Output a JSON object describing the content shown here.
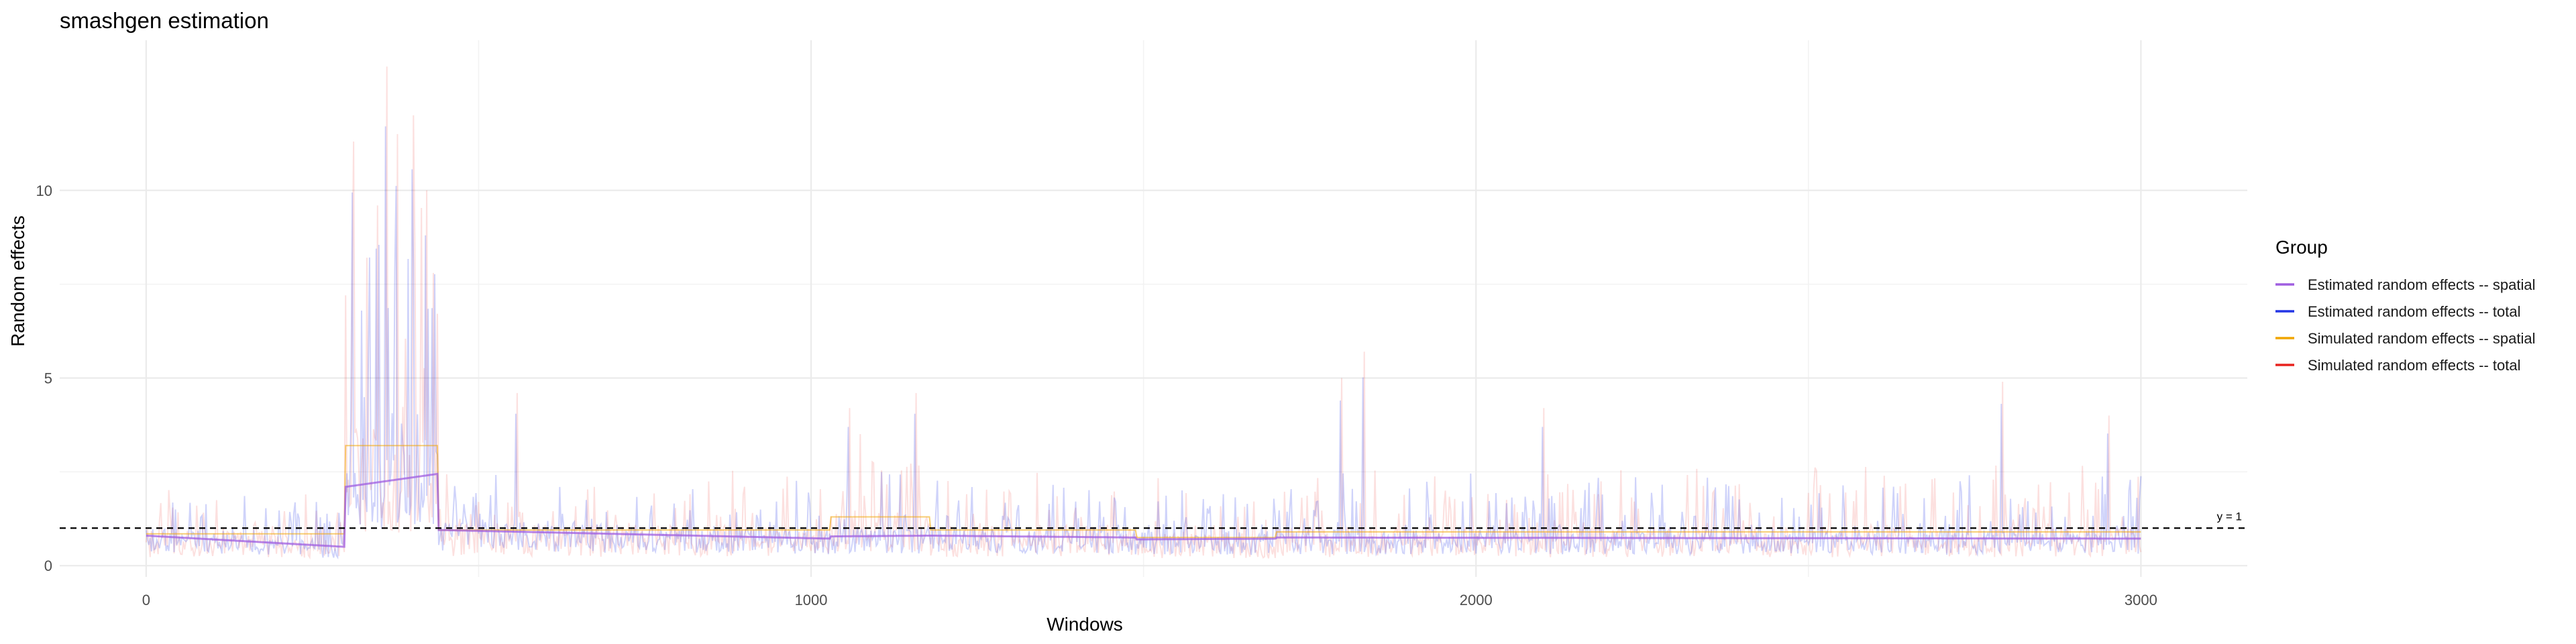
{
  "chart_data": {
    "type": "line",
    "title": "smashgen estimation",
    "xlabel": "Windows",
    "ylabel": "Random effects",
    "xlim": [
      -130,
      3160
    ],
    "ylim": [
      -0.3,
      14.0
    ],
    "x_ticks": [
      0,
      1000,
      2000,
      3000
    ],
    "y_ticks": [
      0,
      5,
      10
    ],
    "grid": true,
    "n_windows": 3000,
    "reference_line": {
      "y": 1,
      "label": "y = 1",
      "style": "dashed",
      "color": "#000000"
    },
    "legend": {
      "title": "Group",
      "position": "right",
      "entries": [
        {
          "label": "Estimated random effects -- spatial",
          "color": "#a05ee0"
        },
        {
          "label": "Estimated random effects -- total",
          "color": "#2436e6"
        },
        {
          "label": "Simulated random effects -- spatial",
          "color": "#f0a500"
        },
        {
          "label": "Simulated random effects -- total",
          "color": "#e8231f"
        }
      ]
    },
    "segments": [
      {
        "from": 0,
        "to": 300,
        "sim_spatial": 0.85,
        "est_spatial_start": 0.8,
        "est_spatial_end": 0.5,
        "noise_amp": 1.5
      },
      {
        "from": 300,
        "to": 440,
        "sim_spatial": 3.2,
        "est_spatial_start": 2.1,
        "est_spatial_end": 2.45,
        "noise_amp": 7.5
      },
      {
        "from": 440,
        "to": 1030,
        "sim_spatial": 0.95,
        "est_spatial_start": 0.95,
        "est_spatial_end": 0.72,
        "noise_amp": 1.6
      },
      {
        "from": 1030,
        "to": 1180,
        "sim_spatial": 1.3,
        "est_spatial_start": 0.78,
        "est_spatial_end": 0.8,
        "noise_amp": 2.2
      },
      {
        "from": 1180,
        "to": 1490,
        "sim_spatial": 0.95,
        "est_spatial_start": 0.8,
        "est_spatial_end": 0.75,
        "noise_amp": 1.6
      },
      {
        "from": 1490,
        "to": 1700,
        "sim_spatial": 0.75,
        "est_spatial_start": 0.7,
        "est_spatial_end": 0.72,
        "noise_amp": 1.5
      },
      {
        "from": 1700,
        "to": 3000,
        "sim_spatial": 0.9,
        "est_spatial_start": 0.75,
        "est_spatial_end": 0.72,
        "noise_amp": 1.8
      }
    ],
    "peaks": [
      {
        "x": 310,
        "y": 11.3
      },
      {
        "x": 345,
        "y": 9.6
      },
      {
        "x": 360,
        "y": 13.3
      },
      {
        "x": 375,
        "y": 11.5
      },
      {
        "x": 400,
        "y": 12.0
      },
      {
        "x": 420,
        "y": 10.0
      },
      {
        "x": 430,
        "y": 7.8
      },
      {
        "x": 555,
        "y": 4.6
      },
      {
        "x": 1055,
        "y": 4.2
      },
      {
        "x": 1155,
        "y": 4.6
      },
      {
        "x": 1795,
        "y": 5.0
      },
      {
        "x": 1830,
        "y": 5.7
      },
      {
        "x": 2100,
        "y": 4.2
      },
      {
        "x": 2790,
        "y": 4.9
      },
      {
        "x": 2950,
        "y": 4.0
      }
    ]
  }
}
